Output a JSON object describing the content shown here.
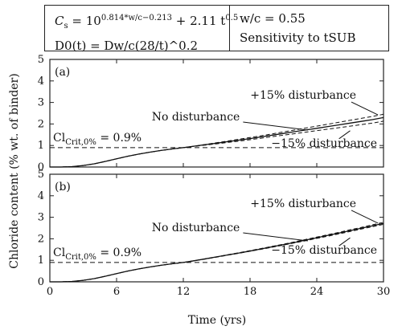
{
  "info_box": {
    "formula_cs": {
      "lead": "C",
      "lead_sub": "s",
      "eq": " = 10",
      "sup": "0.814*w/c−0.213",
      "tail": " + 2.11 t",
      "tail_sup": "0.5"
    },
    "formula_d0": "D0(t) = Dw/c(28/t)^0.2",
    "wc": "w/c = 0.55",
    "sensitivity": "Sensitivity to tSUB"
  },
  "chart_data": [
    {
      "type": "line",
      "panel_label": "(a)",
      "xlim": [
        0,
        30
      ],
      "ylim": [
        0,
        5
      ],
      "x_ticks": [
        0,
        6,
        12,
        18,
        24,
        30
      ],
      "y_ticks": [
        0,
        1,
        2,
        3,
        4,
        5
      ],
      "grid": false,
      "threshold": {
        "label": "Cl_Crit,0% = 0.9%",
        "value": 0.9
      },
      "x": [
        0,
        1,
        2,
        3,
        4,
        5,
        6,
        7,
        8,
        9,
        10,
        11,
        12,
        13,
        14,
        15,
        16,
        17,
        18,
        19,
        20,
        21,
        22,
        23,
        24,
        25,
        26,
        27,
        28,
        29,
        30
      ],
      "series": [
        {
          "name": "No disturbance",
          "style": "solid",
          "values": [
            0.0,
            0.0,
            0.02,
            0.07,
            0.15,
            0.26,
            0.38,
            0.5,
            0.6,
            0.69,
            0.77,
            0.84,
            0.9,
            0.97,
            1.04,
            1.11,
            1.18,
            1.25,
            1.32,
            1.4,
            1.48,
            1.56,
            1.64,
            1.72,
            1.8,
            1.88,
            1.96,
            2.04,
            2.12,
            2.2,
            2.3
          ]
        },
        {
          "name": "+15% disturbance",
          "style": "dashed",
          "values": [
            0.0,
            0.0,
            0.02,
            0.07,
            0.15,
            0.26,
            0.38,
            0.5,
            0.6,
            0.69,
            0.77,
            0.84,
            0.9,
            0.97,
            1.05,
            1.13,
            1.21,
            1.29,
            1.37,
            1.45,
            1.54,
            1.63,
            1.72,
            1.81,
            1.9,
            1.99,
            2.08,
            2.17,
            2.26,
            2.35,
            2.45
          ]
        },
        {
          "name": "−15% disturbance",
          "style": "dashed",
          "values": [
            0.0,
            0.0,
            0.02,
            0.07,
            0.15,
            0.26,
            0.38,
            0.5,
            0.6,
            0.69,
            0.77,
            0.84,
            0.9,
            0.96,
            1.02,
            1.08,
            1.14,
            1.2,
            1.27,
            1.34,
            1.41,
            1.48,
            1.55,
            1.62,
            1.69,
            1.76,
            1.83,
            1.9,
            1.97,
            2.04,
            2.13
          ]
        }
      ]
    },
    {
      "type": "line",
      "panel_label": "(b)",
      "xlim": [
        0,
        30
      ],
      "ylim": [
        0,
        5
      ],
      "x_ticks": [
        0,
        6,
        12,
        18,
        24,
        30
      ],
      "y_ticks": [
        0,
        1,
        2,
        3,
        4,
        5
      ],
      "grid": false,
      "threshold": {
        "label": "Cl_Crit,0% = 0.9%",
        "value": 0.9
      },
      "x": [
        0,
        1,
        2,
        3,
        4,
        5,
        6,
        7,
        8,
        9,
        10,
        11,
        12,
        13,
        14,
        15,
        16,
        17,
        18,
        19,
        20,
        21,
        22,
        23,
        24,
        25,
        26,
        27,
        28,
        29,
        30
      ],
      "series": [
        {
          "name": "No disturbance",
          "style": "solid",
          "values": [
            0.0,
            0.0,
            0.02,
            0.07,
            0.15,
            0.26,
            0.38,
            0.5,
            0.6,
            0.69,
            0.77,
            0.84,
            0.9,
            0.98,
            1.07,
            1.16,
            1.25,
            1.34,
            1.43,
            1.53,
            1.63,
            1.73,
            1.83,
            1.94,
            2.05,
            2.16,
            2.27,
            2.38,
            2.49,
            2.6,
            2.72
          ]
        },
        {
          "name": "+15% disturbance",
          "style": "dashed",
          "values": [
            0.0,
            0.0,
            0.02,
            0.07,
            0.15,
            0.26,
            0.38,
            0.5,
            0.6,
            0.69,
            0.77,
            0.84,
            0.9,
            0.98,
            1.07,
            1.16,
            1.26,
            1.35,
            1.45,
            1.55,
            1.65,
            1.75,
            1.86,
            1.97,
            2.08,
            2.19,
            2.3,
            2.42,
            2.53,
            2.65,
            2.77
          ]
        },
        {
          "name": "−15% disturbance",
          "style": "dashed",
          "values": [
            0.0,
            0.0,
            0.02,
            0.07,
            0.15,
            0.26,
            0.38,
            0.5,
            0.6,
            0.69,
            0.77,
            0.84,
            0.9,
            0.98,
            1.06,
            1.15,
            1.24,
            1.33,
            1.42,
            1.51,
            1.61,
            1.71,
            1.81,
            1.91,
            2.02,
            2.12,
            2.23,
            2.34,
            2.45,
            2.56,
            2.67
          ]
        }
      ]
    }
  ],
  "axis": {
    "xlabel": "Time (yrs)",
    "ylabel": "Chloride content (% wt. of binder)"
  },
  "threshold_label": {
    "lead": "Cl",
    "sub": "Crit,0%",
    "tail": " = 0.9%"
  },
  "annotations": {
    "plus": "+15% disturbance",
    "none": "No disturbance",
    "minus": "−15% disturbance"
  },
  "colors": {
    "line": "#111111",
    "axis": "#222222"
  }
}
